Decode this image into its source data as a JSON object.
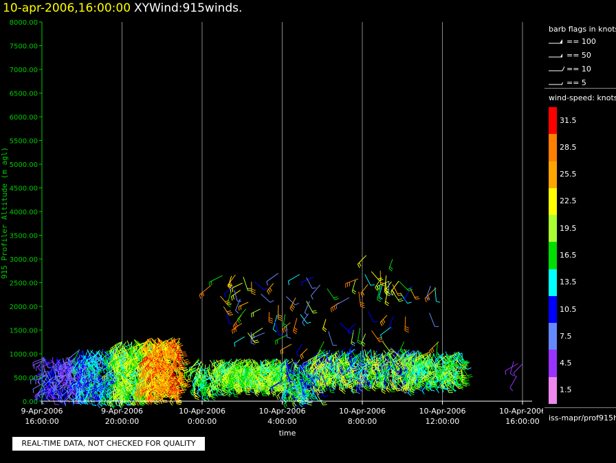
{
  "header": {
    "date": "10-apr-2006,16:00:00",
    "product": "XYWind:915winds."
  },
  "note": "REAL-TIME DATA, NOT CHECKED FOR QUALITY",
  "legend": {
    "barb_title": "barb flags in knots",
    "barbs": [
      {
        "label": "== 100",
        "knots": 100
      },
      {
        "label": "== 50",
        "knots": 50
      },
      {
        "label": "== 10",
        "knots": 10
      },
      {
        "label": "== 5",
        "knots": 5
      }
    ],
    "speed_title": "wind-speed: knots",
    "colorbar": [
      {
        "label": "31.5",
        "color": "#ff0000"
      },
      {
        "label": "28.5",
        "color": "#ff7f00"
      },
      {
        "label": "25.5",
        "color": "#ffa500"
      },
      {
        "label": "22.5",
        "color": "#ffff00"
      },
      {
        "label": "19.5",
        "color": "#aaff33"
      },
      {
        "label": "16.5",
        "color": "#00dd00"
      },
      {
        "label": "13.5",
        "color": "#00ffff"
      },
      {
        "label": "10.5",
        "color": "#0000ff"
      },
      {
        "label": "7.5",
        "color": "#6688ff"
      },
      {
        "label": "4.5",
        "color": "#9933ff"
      },
      {
        "label": "1.5",
        "color": "#ee88ee"
      }
    ],
    "source": "iss-mapr/prof915h"
  },
  "chart_data": {
    "type": "scatter",
    "title": "XYWind:915winds.",
    "xlabel": "time",
    "ylabel": "915 Profiler Altitude (m agl)",
    "ylim": [
      0,
      8000
    ],
    "yticks": [
      "0.00",
      "500.00",
      "1000.00",
      "1500.00",
      "2000.00",
      "2500.00",
      "3000.00",
      "3500.00",
      "4000.00",
      "4500.00",
      "5000.00",
      "5500.00",
      "6000.00",
      "6500.00",
      "7000.00",
      "7500.00",
      "8000.00"
    ],
    "xlim_hours": [
      0,
      24
    ],
    "xticks": [
      {
        "date": "9-Apr-2006",
        "time": "16:00:00"
      },
      {
        "date": "9-Apr-2006",
        "time": "20:00:00"
      },
      {
        "date": "10-Apr-2006",
        "time": "0:00:00"
      },
      {
        "date": "10-Apr-2006",
        "time": "4:00:00"
      },
      {
        "date": "10-Apr-2006",
        "time": "8:00:00"
      },
      {
        "date": "10-Apr-2006",
        "time": "12:00:00"
      },
      {
        "date": "10-Apr-2006",
        "time": "16:00:00"
      }
    ],
    "grid": "vertical",
    "colors": {
      "axis": "#00cc00",
      "grid": "#888888"
    },
    "segments": [
      {
        "from": 0.0,
        "to": 2.5,
        "hmin": 200,
        "hmax": 950,
        "n": 260,
        "spd": [
          3,
          11
        ]
      },
      {
        "from": 1.8,
        "to": 4.2,
        "hmin": 150,
        "hmax": 1100,
        "n": 320,
        "spd": [
          8,
          16
        ]
      },
      {
        "from": 3.6,
        "to": 5.5,
        "hmin": 150,
        "hmax": 1300,
        "n": 380,
        "spd": [
          14,
          24
        ]
      },
      {
        "from": 5.2,
        "to": 6.9,
        "hmin": 200,
        "hmax": 1350,
        "n": 360,
        "spd": [
          20,
          32
        ]
      },
      {
        "from": 7.6,
        "to": 8.8,
        "hmin": 300,
        "hmax": 900,
        "n": 90,
        "spd": [
          12,
          22
        ]
      },
      {
        "from": 8.9,
        "to": 12.2,
        "hmin": 400,
        "hmax": 900,
        "n": 420,
        "spd": [
          14,
          22
        ]
      },
      {
        "from": 12.0,
        "to": 13.8,
        "hmin": 150,
        "hmax": 900,
        "n": 180,
        "spd": [
          8,
          20
        ]
      },
      {
        "from": 13.6,
        "to": 19.0,
        "hmin": 450,
        "hmax": 1100,
        "n": 560,
        "spd": [
          8,
          24
        ]
      },
      {
        "from": 18.4,
        "to": 21.0,
        "hmin": 450,
        "hmax": 1050,
        "n": 220,
        "spd": [
          12,
          22
        ]
      },
      {
        "from": 8.0,
        "to": 20.0,
        "hmin": 1100,
        "hmax": 2700,
        "n": 90,
        "spd": [
          6,
          30
        ]
      },
      {
        "from": 16.0,
        "to": 18.0,
        "hmin": 2300,
        "hmax": 3100,
        "n": 14,
        "spd": [
          15,
          25
        ]
      },
      {
        "from": 23.5,
        "to": 24.0,
        "hmin": 500,
        "hmax": 900,
        "n": 4,
        "spd": [
          3,
          6
        ]
      }
    ]
  }
}
